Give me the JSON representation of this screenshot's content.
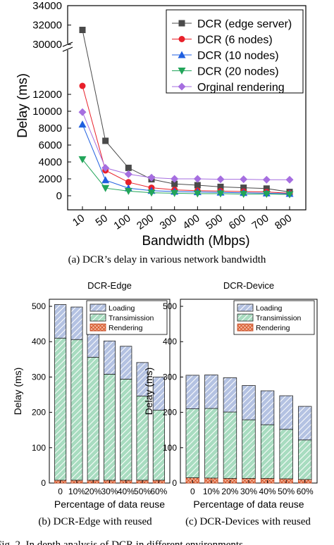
{
  "figure": {
    "caption_a": "(a) DCR’s delay in various network bandwidth",
    "caption_b": "(b) DCR-Edge with reused",
    "caption_c": "(c) DCR-Devices with reused",
    "fig_caption": "Fig. 2. In depth analysis of DCR in different environments"
  },
  "chart_data": [
    {
      "type": "line",
      "title": "",
      "xlabel": "Bandwidth (Mbps)",
      "ylabel": "Delay (ms)",
      "x": [
        10,
        50,
        100,
        200,
        300,
        400,
        500,
        600,
        700,
        800
      ],
      "x_tick_labels": [
        "10",
        "50",
        "100",
        "200",
        "300",
        "400",
        "500",
        "600",
        "700",
        "800"
      ],
      "y_ticks": [
        0,
        2000,
        4000,
        6000,
        8000,
        10000,
        12000,
        30000,
        32000,
        34000
      ],
      "ylim": [
        0,
        34000
      ],
      "y_axis_break": [
        13000,
        29000
      ],
      "legend_position": "top-right",
      "grid": false,
      "series": [
        {
          "name": "DCR (edge server)",
          "marker": "square",
          "color": "#4a4a4a",
          "values": [
            31500,
            6500,
            3300,
            1950,
            1400,
            1250,
            1050,
            950,
            850,
            450
          ]
        },
        {
          "name": "DCR (6 nodes)",
          "marker": "circle",
          "color": "#e8202a",
          "values": [
            13000,
            3000,
            1600,
            950,
            700,
            600,
            550,
            500,
            450,
            300
          ]
        },
        {
          "name": "DCR (10 nodes)",
          "marker": "triangle-up",
          "color": "#1f5fe0",
          "values": [
            8450,
            1850,
            900,
            600,
            500,
            450,
            400,
            350,
            300,
            250
          ]
        },
        {
          "name": "DCR (20 nodes)",
          "marker": "triangle-down",
          "color": "#22a55a",
          "values": [
            4300,
            900,
            550,
            350,
            300,
            250,
            250,
            200,
            200,
            150
          ]
        },
        {
          "name": "Orginal rendering",
          "marker": "diamond",
          "color": "#a66ee0",
          "values": [
            9900,
            3300,
            2550,
            2150,
            2000,
            2000,
            1950,
            1950,
            1900,
            1900
          ]
        }
      ]
    },
    {
      "type": "bar",
      "stacked": true,
      "title": "DCR-Edge",
      "xlabel": "Percentage of data reuse",
      "ylabel": "Delay (ms)",
      "categories": [
        "0",
        "10%",
        "20%",
        "30%",
        "40%",
        "50%",
        "60%"
      ],
      "ylim": [
        0,
        520
      ],
      "y_ticks": [
        0,
        100,
        200,
        300,
        400,
        500
      ],
      "legend_position": "top-right",
      "series": [
        {
          "name": "Rendering",
          "color": "#f3b49a",
          "pattern": "crosshatch",
          "values": [
            8,
            8,
            8,
            8,
            8,
            8,
            8
          ]
        },
        {
          "name": "Transimission",
          "color": "#a8dcc0",
          "pattern": "diagonal",
          "values": [
            402,
            398,
            348,
            300,
            286,
            238,
            198
          ]
        },
        {
          "name": "Loading",
          "color": "#b4c2e2",
          "pattern": "diagonal",
          "values": [
            95,
            92,
            95,
            94,
            93,
            95,
            94
          ]
        }
      ]
    },
    {
      "type": "bar",
      "stacked": true,
      "title": "DCR-Device",
      "xlabel": "Percentage of data reuse",
      "ylabel": "Delay (ms)",
      "categories": [
        "0",
        "10%",
        "20%",
        "30%",
        "40%",
        "50%",
        "60%"
      ],
      "ylim": [
        0,
        520
      ],
      "y_ticks": [
        0,
        100,
        200,
        300,
        400,
        500
      ],
      "legend_position": "top-right",
      "series": [
        {
          "name": "Rendering",
          "color": "#f3b49a",
          "pattern": "crosshatch",
          "values": [
            15,
            14,
            13,
            13,
            13,
            12,
            10
          ]
        },
        {
          "name": "Transimission",
          "color": "#a8dcc0",
          "pattern": "diagonal",
          "values": [
            195,
            197,
            188,
            166,
            152,
            140,
            112
          ]
        },
        {
          "name": "Loading",
          "color": "#b4c2e2",
          "pattern": "diagonal",
          "values": [
            95,
            95,
            97,
            97,
            96,
            95,
            95
          ]
        }
      ]
    }
  ]
}
